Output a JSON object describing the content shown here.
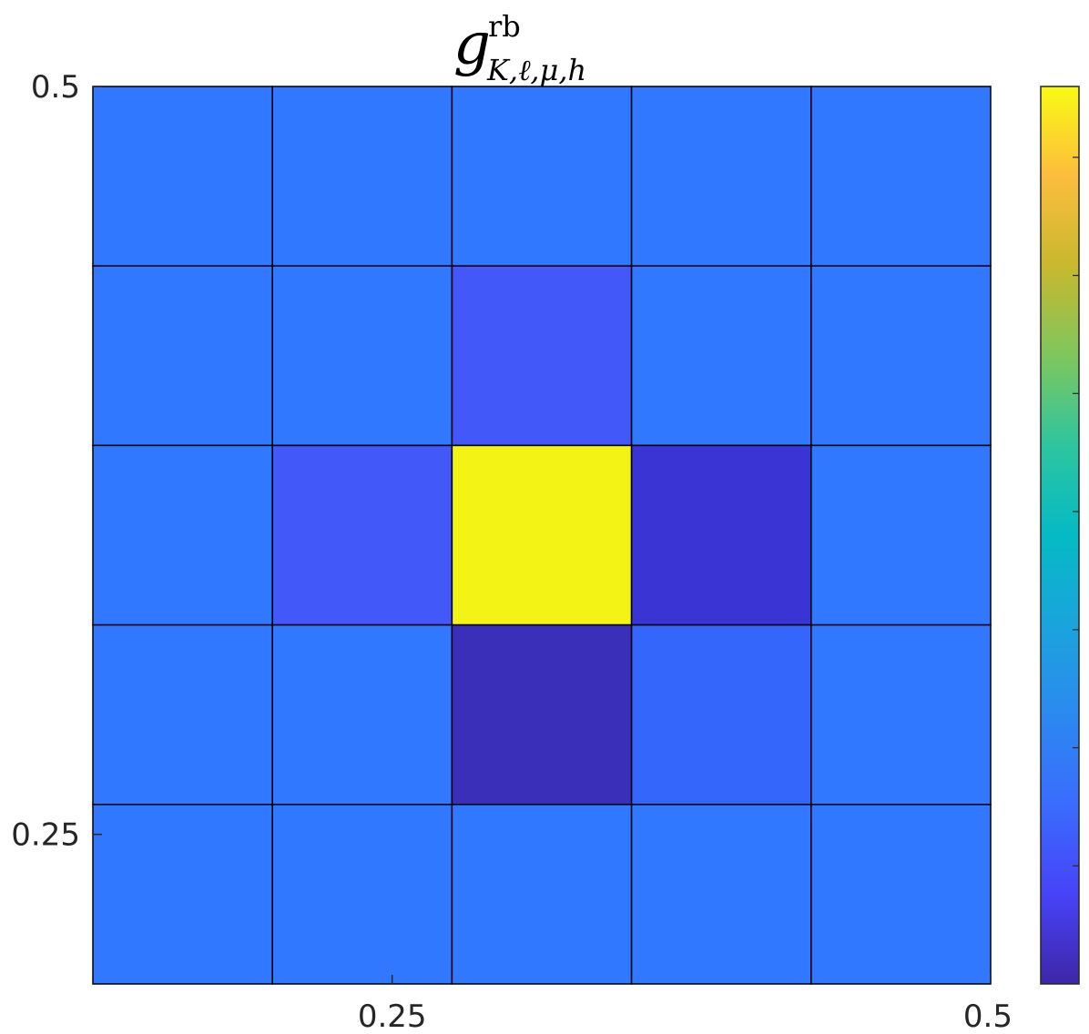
{
  "chart_data": {
    "type": "heatmap",
    "title": {
      "symbol": "g",
      "superscript": "rb",
      "subscript": "K,ℓ,μ,h"
    },
    "x_ticks": [
      {
        "value": 0.25,
        "label": "0.25"
      },
      {
        "value": 0.5,
        "label": "0.5"
      }
    ],
    "y_ticks": [
      {
        "value": 0.5,
        "label": "0.5"
      },
      {
        "value": 0.25,
        "label": "0.25"
      }
    ],
    "xlim": [
      0.125,
      0.5
    ],
    "ylim": [
      0.2,
      0.5
    ],
    "grid": "cell-edges",
    "colormap": "parula",
    "colorbar": {
      "position": "right",
      "tick_count": 7,
      "labels_shown": false
    },
    "cell_rows_top_to_bottom": [
      [
        "#3078ff",
        "#3078ff",
        "#3078ff",
        "#3078ff",
        "#3078ff"
      ],
      [
        "#3078ff",
        "#3078ff",
        "#4258f9",
        "#3078ff",
        "#3078ff"
      ],
      [
        "#3078ff",
        "#4258f9",
        "#f4f316",
        "#3b34d4",
        "#3078ff"
      ],
      [
        "#3078ff",
        "#3078ff",
        "#3a2fb8",
        "#3566fb",
        "#3078ff"
      ],
      [
        "#3078ff",
        "#3078ff",
        "#3078ff",
        "#3078ff",
        "#3078ff"
      ]
    ]
  }
}
